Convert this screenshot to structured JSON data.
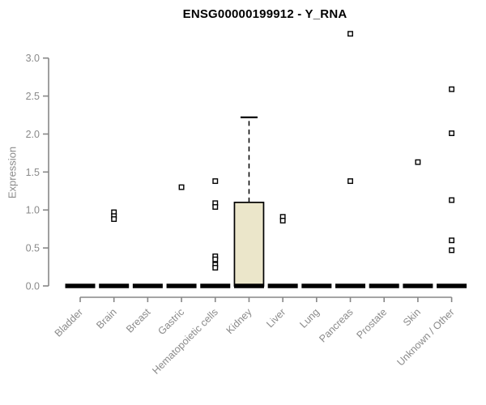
{
  "chart_data": {
    "type": "boxplot",
    "title": "ENSG00000199912 - Y_RNA",
    "ylabel": "Expression",
    "yticks": [
      "0.0",
      "0.5",
      "1.0",
      "1.5",
      "2.0",
      "2.5",
      "3.0"
    ],
    "ylim": [
      0.0,
      3.0
    ],
    "grid": false,
    "categories": [
      "Bladder",
      "Brain",
      "Breast",
      "Gastric",
      "Hematopoietic cells",
      "Kidney",
      "Liver",
      "Lung",
      "Pancreas",
      "Prostate",
      "Skin",
      "Unknown / Other"
    ],
    "boxes": [
      {
        "category": "Bladder",
        "q1": 0,
        "median": 0,
        "q3": 0,
        "whisker_low": 0,
        "whisker_high": 0,
        "outliers": []
      },
      {
        "category": "Brain",
        "q1": 0,
        "median": 0,
        "q3": 0,
        "whisker_low": 0,
        "whisker_high": 0,
        "outliers": [
          0.97,
          0.92,
          0.88
        ]
      },
      {
        "category": "Breast",
        "q1": 0,
        "median": 0,
        "q3": 0,
        "whisker_low": 0,
        "whisker_high": 0,
        "outliers": []
      },
      {
        "category": "Gastric",
        "q1": 0,
        "median": 0,
        "q3": 0,
        "whisker_low": 0,
        "whisker_high": 0,
        "outliers": [
          1.3
        ]
      },
      {
        "category": "Hematopoietic cells",
        "q1": 0,
        "median": 0,
        "q3": 0,
        "whisker_low": 0,
        "whisker_high": 0,
        "outliers": [
          1.38,
          1.09,
          1.04,
          0.39,
          0.35,
          0.28,
          0.24
        ]
      },
      {
        "category": "Kidney",
        "q1": 0,
        "median": 0,
        "q3": 1.1,
        "whisker_low": 0,
        "whisker_high": 2.22,
        "outliers": []
      },
      {
        "category": "Liver",
        "q1": 0,
        "median": 0,
        "q3": 0,
        "whisker_low": 0,
        "whisker_high": 0,
        "outliers": [
          0.91,
          0.86
        ]
      },
      {
        "category": "Lung",
        "q1": 0,
        "median": 0,
        "q3": 0,
        "whisker_low": 0,
        "whisker_high": 0,
        "outliers": []
      },
      {
        "category": "Pancreas",
        "q1": 0,
        "median": 0,
        "q3": 0,
        "whisker_low": 0,
        "whisker_high": 0,
        "outliers": [
          3.32,
          1.38
        ]
      },
      {
        "category": "Prostate",
        "q1": 0,
        "median": 0,
        "q3": 0,
        "whisker_low": 0,
        "whisker_high": 0,
        "outliers": []
      },
      {
        "category": "Skin",
        "q1": 0,
        "median": 0,
        "q3": 0,
        "whisker_low": 0,
        "whisker_high": 0,
        "outliers": [
          1.63
        ]
      },
      {
        "category": "Unknown / Other",
        "q1": 0,
        "median": 0,
        "q3": 0,
        "whisker_low": 0,
        "whisker_high": 0,
        "outliers": [
          2.59,
          2.01,
          1.13,
          0.6,
          0.47
        ]
      }
    ],
    "colors": {
      "box_fill": "#EBE6CA",
      "box_stroke": "#000000",
      "median_color": "#000000",
      "outlier_stroke": "#000000",
      "axis_color": "#878787",
      "tick_label_color": "#8a8a8a",
      "title_color": "#000000"
    },
    "legend": null
  }
}
